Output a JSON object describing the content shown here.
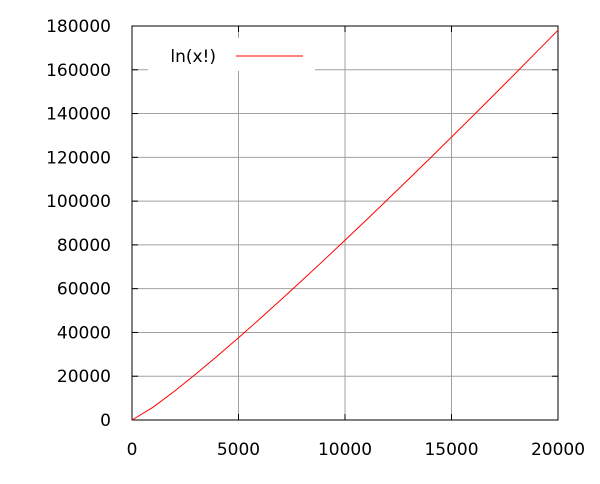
{
  "chart_data": {
    "type": "line",
    "title": "",
    "xlabel": "",
    "ylabel": "",
    "xlim": [
      0,
      20000
    ],
    "ylim": [
      0,
      180000
    ],
    "xticks": [
      0,
      5000,
      10000,
      15000,
      20000
    ],
    "yticks": [
      0,
      20000,
      40000,
      60000,
      80000,
      100000,
      120000,
      140000,
      160000,
      180000
    ],
    "xtick_labels": [
      "0",
      "5000",
      "10000",
      "15000",
      "20000"
    ],
    "ytick_labels": [
      "0",
      "20000",
      "40000",
      "60000",
      "80000",
      "100000",
      "120000",
      "140000",
      "160000",
      "180000"
    ],
    "grid": true,
    "legend_position": "top-left",
    "series": [
      {
        "name": "ln(x!)",
        "color": "#ff0000",
        "x": [
          0,
          1000,
          2000,
          3000,
          4000,
          5000,
          6000,
          7000,
          8000,
          9000,
          10000,
          11000,
          12000,
          13000,
          14000,
          15000,
          16000,
          17000,
          18000,
          19000,
          20000
        ],
        "y": [
          0,
          5912,
          13206,
          21024,
          29181,
          37591,
          46202,
          54981,
          63903,
          72950,
          82109,
          91368,
          100718,
          110151,
          119661,
          129243,
          138891,
          148602,
          158372,
          168198,
          178076
        ]
      }
    ]
  }
}
